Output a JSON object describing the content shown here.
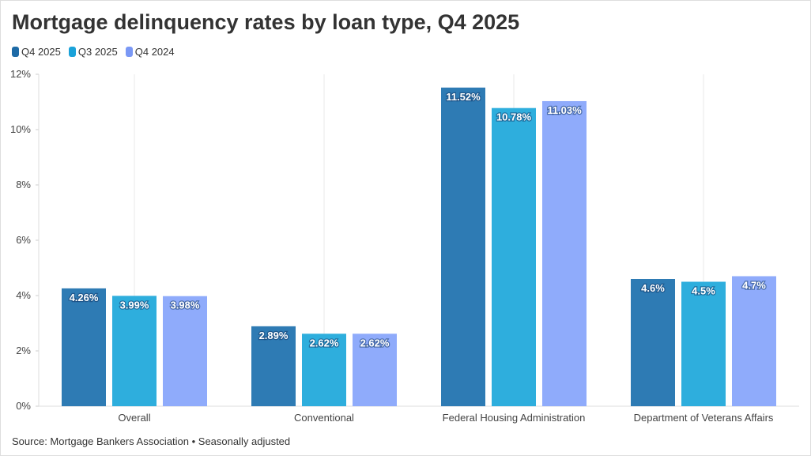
{
  "chart_data": {
    "type": "bar",
    "title": "Mortgage delinquency rates by loan type, Q4 2025",
    "categories": [
      "Overall",
      "Conventional",
      "Federal Housing Administration",
      "Department of Veterans Affairs"
    ],
    "series": [
      {
        "name": "Q4 2025",
        "color": "#2e7bb4",
        "legend_color": "#1d6aa6",
        "values": [
          4.26,
          2.89,
          11.52,
          4.6
        ],
        "labels": [
          "4.26%",
          "2.89%",
          "11.52%",
          "4.6%"
        ]
      },
      {
        "name": "Q3 2025",
        "color": "#2eaedd",
        "legend_color": "#1aa2d9",
        "values": [
          3.99,
          2.62,
          10.78,
          4.5
        ],
        "labels": [
          "3.99%",
          "2.62%",
          "10.78%",
          "4.5%"
        ]
      },
      {
        "name": "Q4 2024",
        "color": "#8fabfb",
        "legend_color": "#7a98f5",
        "values": [
          3.98,
          2.62,
          11.03,
          4.7
        ],
        "labels": [
          "3.98%",
          "2.62%",
          "11.03%",
          "4.7%"
        ]
      }
    ],
    "ylim": [
      0,
      12
    ],
    "yticks": [
      0,
      2,
      4,
      6,
      8,
      10,
      12
    ],
    "ytick_labels": [
      "0%",
      "2%",
      "4%",
      "6%",
      "8%",
      "10%",
      "12%"
    ],
    "grid": true,
    "legend": "top-left",
    "source": "Source: Mortgage Bankers Association • Seasonally adjusted"
  }
}
